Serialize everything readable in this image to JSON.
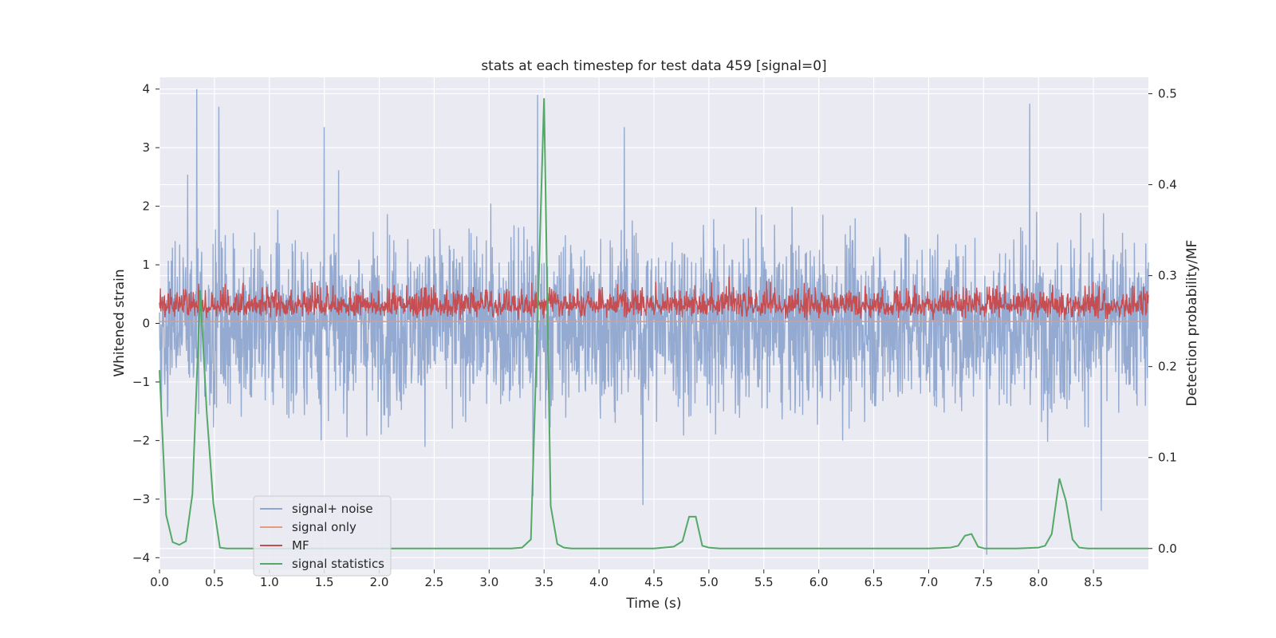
{
  "chart_data": {
    "type": "line",
    "title": "stats at each timestep for test data 459 [signal=0]",
    "xlabel": "Time (s)",
    "ylabel": "Whitened strain",
    "y2label": "Detection probability/MF",
    "xlim": [
      0,
      9
    ],
    "ylim": [
      -4.2,
      4.2
    ],
    "y2lim": [
      -0.023,
      0.518
    ],
    "x_ticks": [
      "0.0",
      "0.5",
      "1.0",
      "1.5",
      "2.0",
      "2.5",
      "3.0",
      "3.5",
      "4.0",
      "4.5",
      "5.0",
      "5.5",
      "6.0",
      "6.5",
      "7.0",
      "7.5",
      "8.0",
      "8.5"
    ],
    "x_tick_values": [
      0,
      0.5,
      1,
      1.5,
      2,
      2.5,
      3,
      3.5,
      4,
      4.5,
      5,
      5.5,
      6,
      6.5,
      7,
      7.5,
      8,
      8.5
    ],
    "y_ticks": [
      "4",
      "3",
      "2",
      "1",
      "0",
      "−1",
      "−2",
      "−3",
      "−4"
    ],
    "y_tick_values": [
      4,
      3,
      2,
      1,
      0,
      -1,
      -2,
      -3,
      -4
    ],
    "y2_ticks": [
      "0.5",
      "0.4",
      "0.3",
      "0.2",
      "0.1",
      "0.0"
    ],
    "y2_tick_values": [
      0.5,
      0.4,
      0.3,
      0.2,
      0.1,
      0.0
    ],
    "grid": true,
    "legend_position": "lower-left",
    "series": [
      {
        "name": "signal+ noise",
        "color": "#8fa6cf",
        "axis": "left",
        "note_values": "dense noise trace, approx. between -3.6 and 4.0 around 0",
        "envelope_peaks": [
          [
            0.34,
            4.0
          ],
          [
            0.54,
            3.7
          ],
          [
            3.44,
            3.9
          ],
          [
            7.92,
            3.75
          ],
          [
            1.5,
            3.35
          ],
          [
            4.23,
            3.35
          ]
        ],
        "envelope_troughs": [
          [
            3.4,
            -2.95
          ],
          [
            4.4,
            -3.1
          ],
          [
            7.53,
            -3.95
          ],
          [
            8.57,
            -3.2
          ]
        ]
      },
      {
        "name": "signal only",
        "color": "#e49a7e",
        "axis": "left",
        "x": [
          0,
          9
        ],
        "y": [
          0.03,
          0.03
        ]
      },
      {
        "name": "MF",
        "color": "#c44e52",
        "axis": "left",
        "note_values": "dense trace, approx. between 0.0 and 1.0",
        "range": [
          0.0,
          1.0
        ]
      },
      {
        "name": "signal statistics",
        "color": "#55a868",
        "axis": "right",
        "x": [
          0.0,
          0.06,
          0.12,
          0.18,
          0.24,
          0.3,
          0.37,
          0.43,
          0.49,
          0.55,
          0.61,
          0.7,
          0.8,
          1.0,
          1.5,
          2.0,
          2.5,
          3.0,
          3.2,
          3.3,
          3.38,
          3.44,
          3.5,
          3.56,
          3.62,
          3.68,
          3.75,
          3.9,
          4.2,
          4.5,
          4.68,
          4.76,
          4.82,
          4.88,
          4.94,
          5.0,
          5.1,
          5.5,
          6.0,
          6.5,
          7.0,
          7.2,
          7.27,
          7.33,
          7.39,
          7.45,
          7.51,
          7.6,
          7.8,
          8.0,
          8.06,
          8.12,
          8.19,
          8.25,
          8.31,
          8.37,
          8.45,
          8.6,
          9.0
        ],
        "y": [
          0.196,
          0.037,
          0.007,
          0.004,
          0.008,
          0.06,
          0.284,
          0.15,
          0.05,
          0.001,
          0.0,
          0.0,
          0.0,
          0.0,
          0.0,
          0.0,
          0.0,
          0.0,
          0.0,
          0.001,
          0.01,
          0.25,
          0.495,
          0.047,
          0.005,
          0.001,
          0.0,
          0.0,
          0.0,
          0.0,
          0.002,
          0.008,
          0.035,
          0.035,
          0.003,
          0.001,
          0.0,
          0.0,
          0.0,
          0.0,
          0.0,
          0.001,
          0.003,
          0.014,
          0.016,
          0.002,
          0.0,
          0.0,
          0.0,
          0.001,
          0.003,
          0.016,
          0.077,
          0.052,
          0.01,
          0.001,
          0.0,
          0.0,
          0.0
        ]
      }
    ]
  }
}
